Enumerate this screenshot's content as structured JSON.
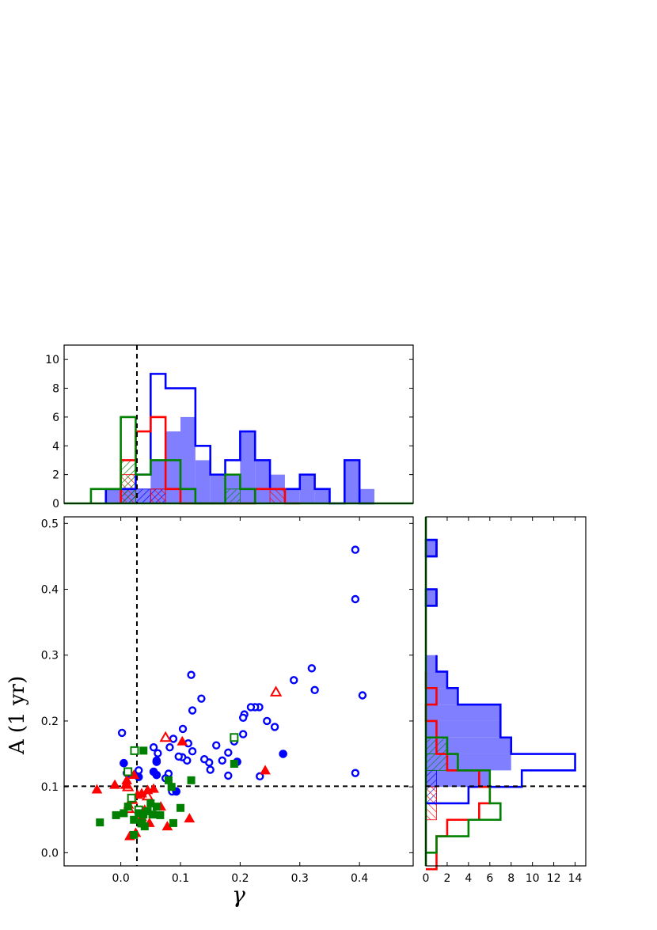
{
  "chart_data": [
    {
      "panel": "top-histogram",
      "type": "histogram",
      "xlim": [
        -0.095,
        0.49
      ],
      "ylim": [
        0,
        11
      ],
      "yticks": [
        0,
        2,
        4,
        6,
        8,
        10
      ],
      "bin_width": 0.025,
      "xlabel": "",
      "ylabel": "",
      "reference_line_x": 0.027,
      "series": [
        {
          "color": "#0000ff",
          "style": "filled",
          "bins_start": [
            -0.025,
            0.0,
            0.025,
            0.05,
            0.075,
            0.1,
            0.125,
            0.15,
            0.175,
            0.2,
            0.225,
            0.25,
            0.275,
            0.3,
            0.325,
            0.35,
            0.375,
            0.4
          ],
          "counts": [
            1,
            1,
            1,
            3,
            5,
            6,
            3,
            2,
            2,
            5,
            3,
            2,
            1,
            2,
            1,
            0,
            3,
            1
          ]
        },
        {
          "color": "#0000ff",
          "style": "step",
          "bins_start": [
            -0.025,
            0.0,
            0.025,
            0.05,
            0.075,
            0.1,
            0.125,
            0.15,
            0.175,
            0.2,
            0.225,
            0.25,
            0.275,
            0.3,
            0.325,
            0.35,
            0.375,
            0.4
          ],
          "counts": [
            1,
            1,
            2,
            9,
            8,
            8,
            4,
            2,
            3,
            5,
            3,
            1,
            1,
            2,
            1,
            0,
            3,
            0
          ]
        },
        {
          "color": "#ff0000",
          "style": "step",
          "bins_start": [
            0.0,
            0.025,
            0.05,
            0.075,
            0.1,
            0.125,
            0.15,
            0.175,
            0.2,
            0.225,
            0.25,
            0.275
          ],
          "counts": [
            3,
            5,
            6,
            1,
            0,
            0,
            0,
            0,
            0,
            1,
            1,
            0
          ]
        },
        {
          "color": "#008000",
          "style": "step",
          "bins_start": [
            -0.05,
            -0.025,
            0.0,
            0.025,
            0.05,
            0.075,
            0.1,
            0.125,
            0.15,
            0.175,
            0.2
          ],
          "counts": [
            1,
            1,
            6,
            2,
            3,
            3,
            1,
            0,
            0,
            2,
            1
          ]
        },
        {
          "color": "#0000ff",
          "style": "hatch",
          "bins_start": [
            0.0,
            0.025,
            0.05
          ],
          "counts": [
            1,
            1,
            1
          ]
        },
        {
          "color": "#ff0000",
          "style": "hatch",
          "bins_start": [
            0.0,
            0.05,
            0.25
          ],
          "counts": [
            2,
            1,
            1
          ]
        },
        {
          "color": "#008000",
          "style": "hatch",
          "bins_start": [
            0.0,
            0.175
          ],
          "counts": [
            3,
            1
          ]
        }
      ]
    },
    {
      "panel": "scatter",
      "type": "scatter",
      "xlabel": "γ",
      "ylabel": "A (1 yr)",
      "xlim": [
        -0.095,
        0.49
      ],
      "ylim": [
        -0.02,
        0.51
      ],
      "xticks": [
        "0.0",
        "0.1",
        "0.2",
        "0.3",
        "0.4"
      ],
      "yticks": [
        "0.0",
        "0.1",
        "0.2",
        "0.3",
        "0.4",
        "0.5"
      ],
      "reference_lines": {
        "x": 0.027,
        "y": 0.101
      },
      "series": [
        {
          "color": "#0000ff",
          "marker": "circle-open",
          "points": [
            [
              0.393,
              0.46
            ],
            [
              0.393,
              0.385
            ],
            [
              0.405,
              0.239
            ],
            [
              0.393,
              0.121
            ],
            [
              0.32,
              0.28
            ],
            [
              0.325,
              0.247
            ],
            [
              0.29,
              0.262
            ],
            [
              0.258,
              0.191
            ],
            [
              0.245,
              0.2
            ],
            [
              0.232,
              0.221
            ],
            [
              0.225,
              0.221
            ],
            [
              0.218,
              0.221
            ],
            [
              0.207,
              0.21
            ],
            [
              0.205,
              0.205
            ],
            [
              0.205,
              0.18
            ],
            [
              0.19,
              0.169
            ],
            [
              0.18,
              0.152
            ],
            [
              0.18,
              0.117
            ],
            [
              0.17,
              0.14
            ],
            [
              0.16,
              0.163
            ],
            [
              0.15,
              0.126
            ],
            [
              0.148,
              0.137
            ],
            [
              0.14,
              0.142
            ],
            [
              0.135,
              0.234
            ],
            [
              0.118,
              0.27
            ],
            [
              0.12,
              0.216
            ],
            [
              0.12,
              0.154
            ],
            [
              0.113,
              0.166
            ],
            [
              0.111,
              0.14
            ],
            [
              0.104,
              0.188
            ],
            [
              0.103,
              0.145
            ],
            [
              0.097,
              0.146
            ],
            [
              0.088,
              0.173
            ],
            [
              0.082,
              0.16
            ],
            [
              0.08,
              0.12
            ],
            [
              0.075,
              0.113
            ],
            [
              0.062,
              0.151
            ],
            [
              0.06,
              0.14
            ],
            [
              0.055,
              0.16
            ],
            [
              0.03,
              0.125
            ],
            [
              0.01,
              0.121
            ],
            [
              0.002,
              0.182
            ],
            [
              0.233,
              0.116
            ],
            [
              0.086,
              0.093
            ]
          ]
        },
        {
          "color": "#0000ff",
          "marker": "circle-filled",
          "points": [
            [
              0.272,
              0.15
            ],
            [
              0.195,
              0.138
            ],
            [
              0.005,
              0.136
            ],
            [
              0.055,
              0.123
            ],
            [
              0.06,
              0.138
            ],
            [
              0.06,
              0.118
            ],
            [
              0.093,
              0.093
            ],
            [
              0.013,
              0.12
            ],
            [
              0.03,
              0.115
            ]
          ]
        },
        {
          "color": "#ff0000",
          "marker": "triangle-open",
          "points": [
            [
              0.26,
              0.244
            ],
            [
              0.075,
              0.175
            ],
            [
              0.012,
              0.1
            ],
            [
              0.045,
              0.086
            ],
            [
              0.013,
              0.067
            ]
          ]
        },
        {
          "color": "#ff0000",
          "marker": "triangle-filled",
          "points": [
            [
              0.242,
              0.125
            ],
            [
              0.103,
              0.169
            ],
            [
              -0.04,
              0.096
            ],
            [
              -0.01,
              0.103
            ],
            [
              0.01,
              0.11
            ],
            [
              0.022,
              0.118
            ],
            [
              0.035,
              0.09
            ],
            [
              0.045,
              0.095
            ],
            [
              0.055,
              0.097
            ],
            [
              0.067,
              0.07
            ],
            [
              0.078,
              0.04
            ],
            [
              0.115,
              0.052
            ],
            [
              0.013,
              0.073
            ],
            [
              0.02,
              0.08
            ],
            [
              0.04,
              0.065
            ],
            [
              0.015,
              0.025
            ],
            [
              0.025,
              0.03
            ],
            [
              0.035,
              0.054
            ],
            [
              0.048,
              0.045
            ],
            [
              0.028,
              0.088
            ],
            [
              0.008,
              0.103
            ]
          ]
        },
        {
          "color": "#008000",
          "marker": "square-open",
          "points": [
            [
              0.19,
              0.175
            ],
            [
              0.023,
              0.155
            ],
            [
              0.012,
              0.123
            ],
            [
              0.018,
              0.083
            ],
            [
              0.03,
              0.065
            ],
            [
              0.035,
              0.045
            ]
          ]
        },
        {
          "color": "#008000",
          "marker": "square-filled",
          "points": [
            [
              -0.035,
              0.046
            ],
            [
              -0.008,
              0.057
            ],
            [
              0.005,
              0.06
            ],
            [
              0.012,
              0.07
            ],
            [
              0.022,
              0.05
            ],
            [
              0.03,
              0.06
            ],
            [
              0.038,
              0.058
            ],
            [
              0.045,
              0.063
            ],
            [
              0.05,
              0.075
            ],
            [
              0.053,
              0.058
            ],
            [
              0.06,
              0.07
            ],
            [
              0.066,
              0.057
            ],
            [
              0.088,
              0.045
            ],
            [
              0.1,
              0.068
            ],
            [
              0.08,
              0.11
            ],
            [
              0.085,
              0.1
            ],
            [
              0.118,
              0.11
            ],
            [
              0.19,
              0.135
            ],
            [
              0.038,
              0.155
            ],
            [
              0.022,
              0.027
            ],
            [
              0.035,
              0.045
            ],
            [
              0.04,
              0.04
            ]
          ]
        }
      ]
    },
    {
      "panel": "right-histogram",
      "type": "histogram",
      "orientation": "horizontal",
      "xlim": [
        0,
        15
      ],
      "xticks": [
        0,
        2,
        4,
        6,
        8,
        10,
        12,
        14
      ],
      "ylim": [
        -0.02,
        0.51
      ],
      "bin_height": 0.025,
      "xlabel": "",
      "ylabel": "",
      "reference_line_y": 0.101,
      "series": [
        {
          "color": "#0000ff",
          "style": "filled",
          "bins_start": [
            0.1,
            0.125,
            0.15,
            0.175,
            0.2,
            0.225,
            0.25,
            0.275,
            0.375,
            0.45
          ],
          "counts": [
            6,
            8,
            8,
            7,
            7,
            3,
            2,
            1,
            1,
            1
          ]
        },
        {
          "color": "#0000ff",
          "style": "step",
          "bins_start": [
            0.075,
            0.1,
            0.125,
            0.15,
            0.175,
            0.2,
            0.225,
            0.25,
            0.275,
            0.375,
            0.45
          ],
          "counts": [
            4,
            9,
            14,
            8,
            7,
            7,
            3,
            2,
            1,
            1,
            1
          ]
        },
        {
          "color": "#ff0000",
          "style": "step",
          "bins_start": [
            -0.025,
            0.0,
            0.025,
            0.05,
            0.075,
            0.1,
            0.125,
            0.15,
            0.175,
            0.2,
            0.225,
            0.25
          ],
          "counts": [
            1,
            1,
            2,
            5,
            6,
            5,
            2,
            1,
            1,
            0,
            1,
            0
          ]
        },
        {
          "color": "#008000",
          "style": "step",
          "bins_start": [
            0.0,
            0.025,
            0.05,
            0.075,
            0.1,
            0.125,
            0.15
          ],
          "counts": [
            1,
            4,
            7,
            6,
            6,
            3,
            2
          ]
        },
        {
          "color": "#0000ff",
          "style": "hatch",
          "bins_start": [
            0.075,
            0.1
          ],
          "counts": [
            1,
            1
          ]
        },
        {
          "color": "#ff0000",
          "style": "hatch",
          "bins_start": [
            0.05,
            0.075
          ],
          "counts": [
            1,
            1
          ]
        },
        {
          "color": "#008000",
          "style": "hatch",
          "bins_start": [
            0.125,
            0.15
          ],
          "counts": [
            2,
            2
          ]
        }
      ]
    }
  ]
}
